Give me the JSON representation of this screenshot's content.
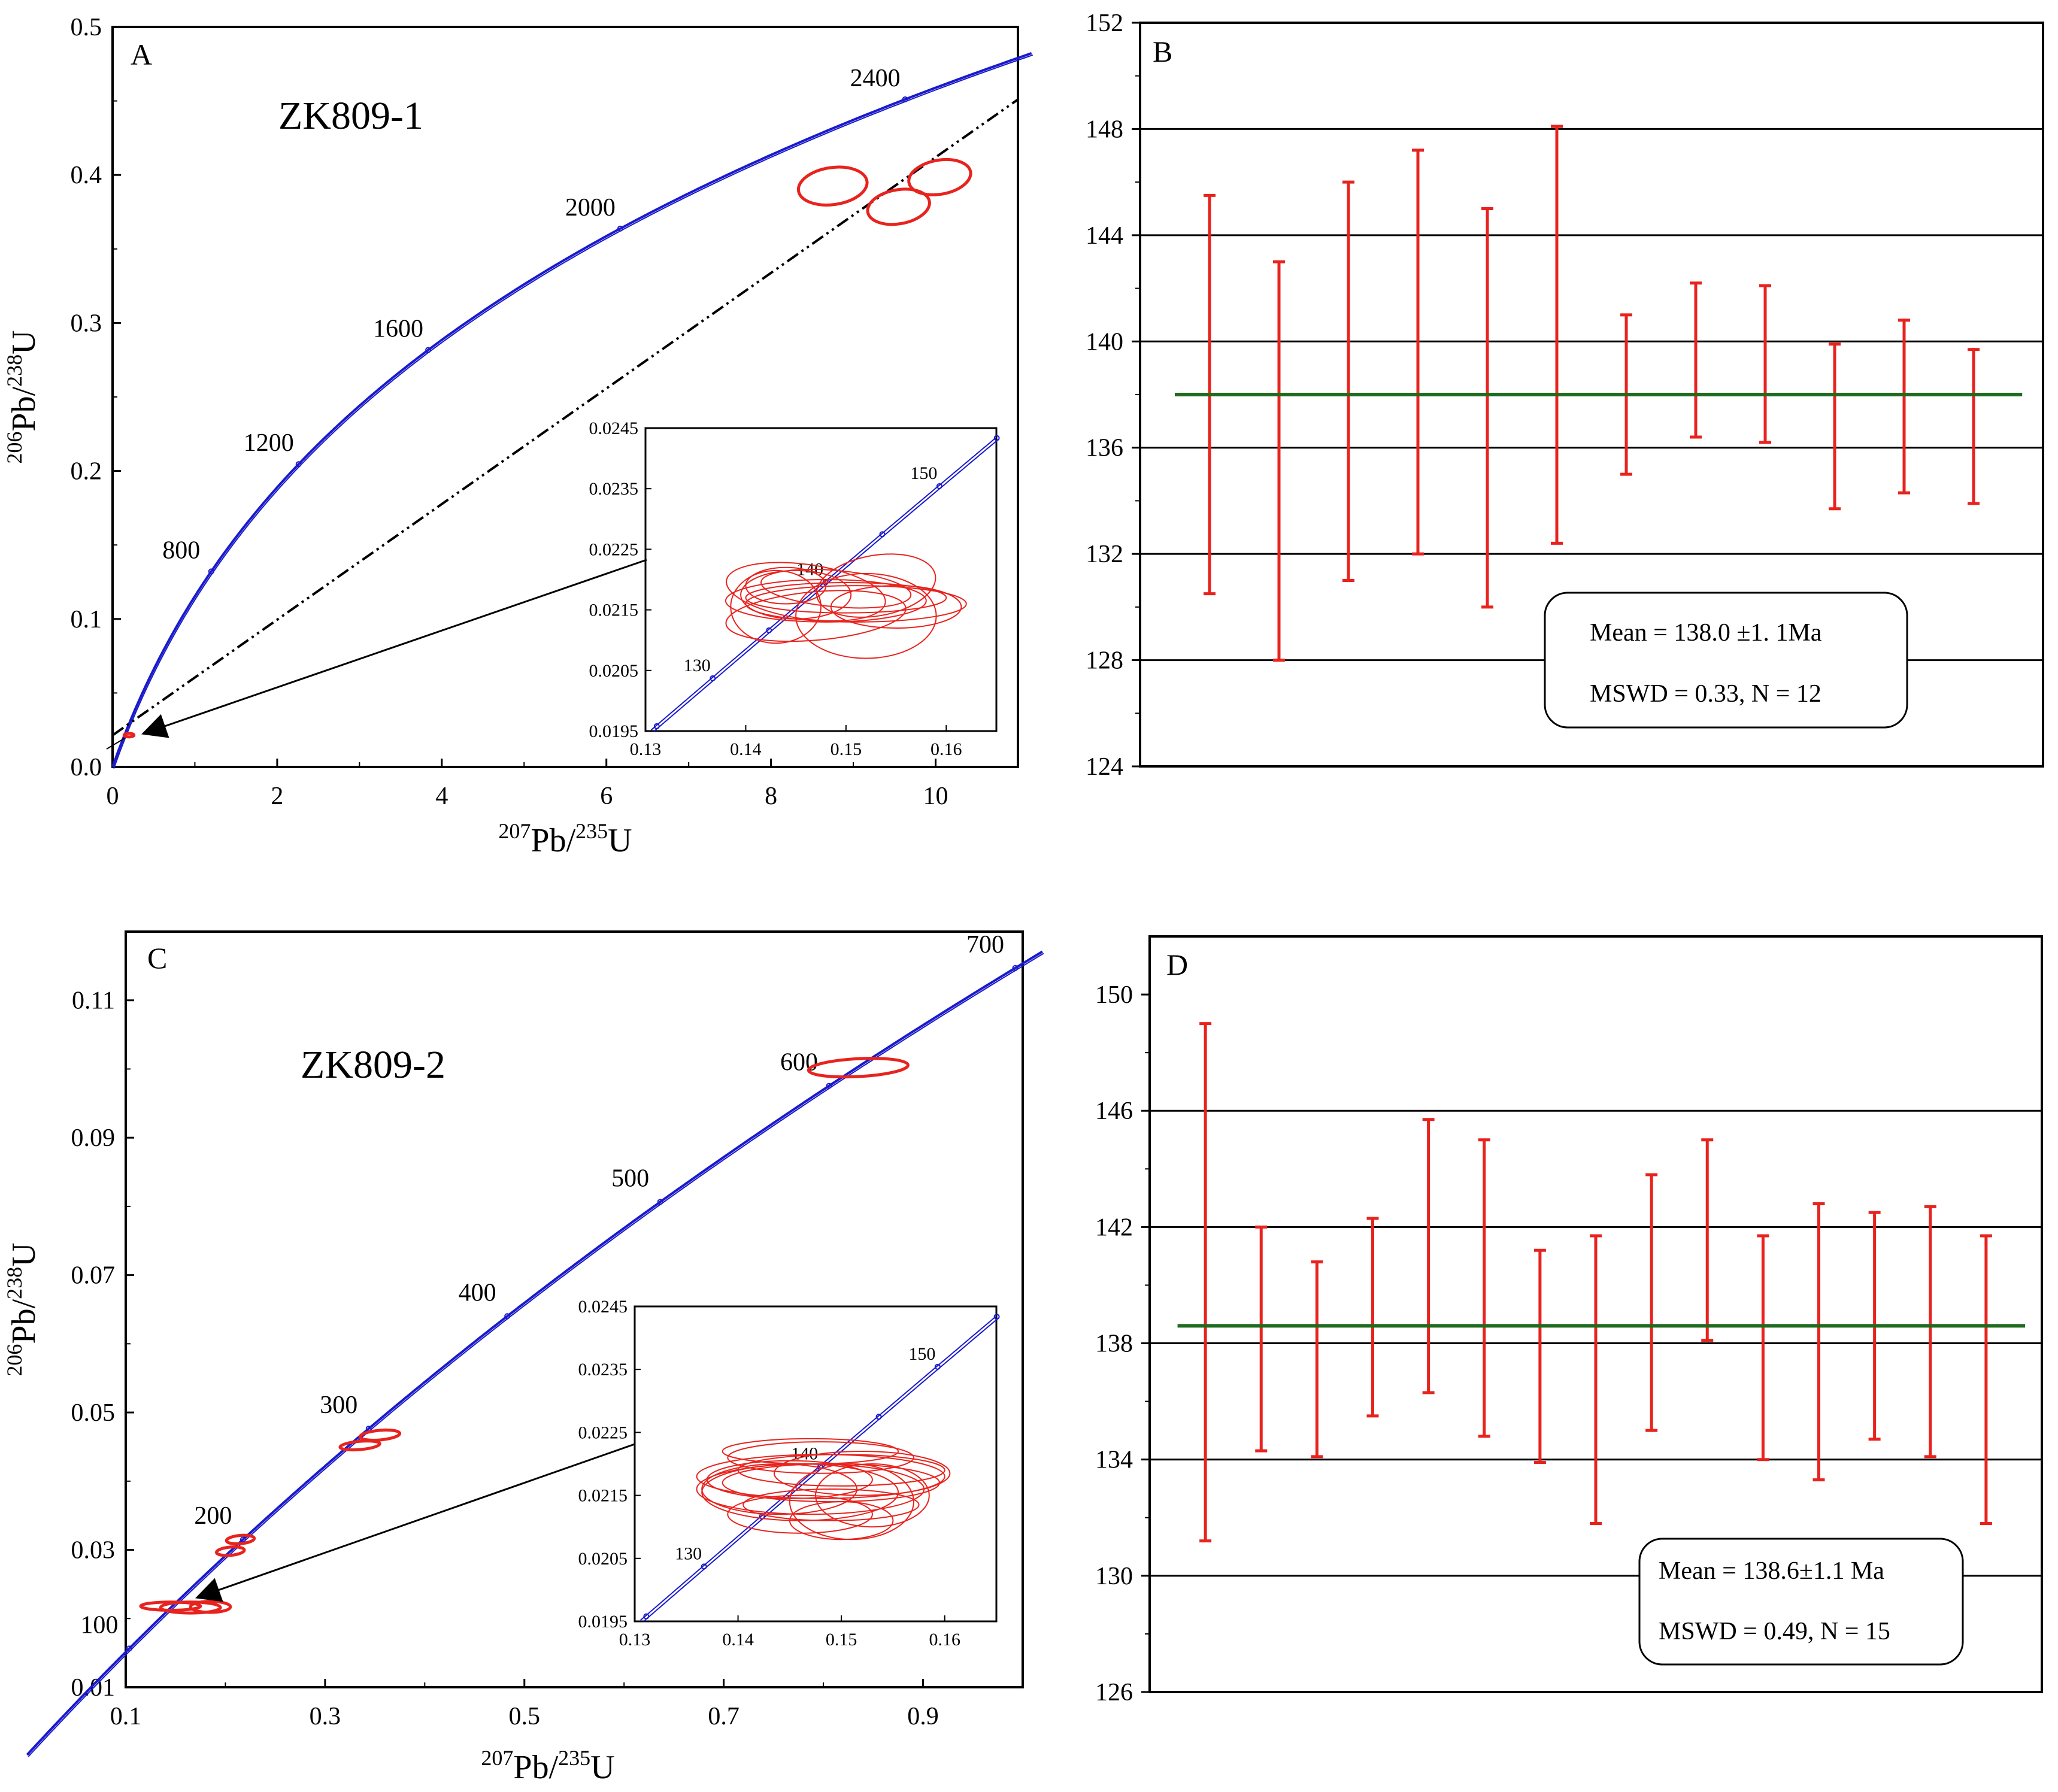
{
  "panels": {
    "A": {
      "letter": "A",
      "sample": "ZK809-1",
      "xlabel": {
        "pre": "207",
        "mid": "Pb/",
        "sup": "235",
        "post": "U"
      },
      "ylabel": {
        "pre": "206",
        "mid": "Pb/",
        "sup": "238",
        "post": "U"
      }
    },
    "B": {
      "letter": "B",
      "mean_text": "Mean = 138.0 ±1. 1Ma",
      "mswd_text": "MSWD = 0.33, N = 12"
    },
    "C": {
      "letter": "C",
      "sample": "ZK809-2",
      "xlabel": {
        "pre": "207",
        "mid": "Pb/",
        "sup": "235",
        "post": "U"
      },
      "ylabel": {
        "pre": "206",
        "mid": "Pb/",
        "sup": "238",
        "post": "U"
      }
    },
    "D": {
      "letter": "D",
      "mean_text": "Mean = 138.6±1.1  Ma",
      "mswd_text": "MSWD = 0.49, N = 15"
    }
  },
  "colors": {
    "concordia": "#1a1acc",
    "ellipse": "#e8231e",
    "errorbar": "#e8231e",
    "mean_line": "#1e6b1e",
    "discordia": "#000000",
    "grid": "#000000"
  },
  "chart_data": [
    {
      "id": "A",
      "type": "scatter",
      "subtype": "concordia",
      "xlim": [
        0,
        11
      ],
      "ylim": [
        0,
        0.5
      ],
      "xticks": [
        0,
        2,
        4,
        6,
        8,
        10
      ],
      "yticks": [
        0.0,
        0.1,
        0.2,
        0.3,
        0.4,
        0.5
      ],
      "age_labels": [
        800,
        1200,
        1600,
        2000,
        2400
      ],
      "discordia_x_max": 11,
      "ellipses": [
        {
          "x": 8.75,
          "y": 0.3925,
          "rx": 0.42,
          "ry": 0.0125,
          "rot": 8
        },
        {
          "x": 9.55,
          "y": 0.3785,
          "rx": 0.38,
          "ry": 0.0115,
          "rot": 10
        },
        {
          "x": 10.05,
          "y": 0.3985,
          "rx": 0.38,
          "ry": 0.0115,
          "rot": 10
        },
        {
          "x": 0.2,
          "y": 0.0215,
          "rx": 0.06,
          "ry": 0.0012,
          "rot": 0
        }
      ],
      "inset": {
        "xlim": [
          0.13,
          0.165
        ],
        "ylim": [
          0.0195,
          0.0245
        ],
        "xticks": [
          0.13,
          0.14,
          0.15,
          0.16
        ],
        "yticks": [
          0.0195,
          0.0205,
          0.0215,
          0.0225,
          0.0235,
          0.0245
        ],
        "age_labels": [
          130,
          140,
          150
        ],
        "ellipses": [
          {
            "x": 0.148,
            "y": 0.02165,
            "rx": 0.01,
            "ry": 0.00035,
            "rot": 0
          },
          {
            "x": 0.151,
            "y": 0.0216,
            "rx": 0.011,
            "ry": 0.0003,
            "rot": 0
          },
          {
            "x": 0.146,
            "y": 0.0218,
            "rx": 0.008,
            "ry": 0.00045,
            "rot": -8
          },
          {
            "x": 0.152,
            "y": 0.0214,
            "rx": 0.007,
            "ry": 0.0007,
            "rot": 0
          },
          {
            "x": 0.143,
            "y": 0.02155,
            "rx": 0.0045,
            "ry": 0.0006,
            "rot": 0
          },
          {
            "x": 0.147,
            "y": 0.0214,
            "rx": 0.009,
            "ry": 0.0004,
            "rot": 5
          },
          {
            "x": 0.15,
            "y": 0.0217,
            "rx": 0.01,
            "ry": 0.00025,
            "rot": 0
          },
          {
            "x": 0.153,
            "y": 0.0219,
            "rx": 0.006,
            "ry": 0.0005,
            "rot": 10
          },
          {
            "x": 0.145,
            "y": 0.02175,
            "rx": 0.0055,
            "ry": 0.0004,
            "rot": 0
          },
          {
            "x": 0.149,
            "y": 0.02185,
            "rx": 0.0075,
            "ry": 0.0003,
            "rot": -5
          },
          {
            "x": 0.155,
            "y": 0.02155,
            "rx": 0.0065,
            "ry": 0.00035,
            "rot": 0
          },
          {
            "x": 0.144,
            "y": 0.0219,
            "rx": 0.004,
            "ry": 0.0003,
            "rot": 0
          }
        ]
      }
    },
    {
      "id": "B",
      "type": "errorbar",
      "ylim": [
        124,
        152
      ],
      "yticks": [
        124,
        128,
        132,
        136,
        140,
        144,
        148,
        152
      ],
      "mean": 138.0,
      "bars": [
        {
          "low": 130.5,
          "high": 145.5
        },
        {
          "low": 128.0,
          "high": 143.0
        },
        {
          "low": 131.0,
          "high": 146.0
        },
        {
          "low": 132.0,
          "high": 147.2
        },
        {
          "low": 130.0,
          "high": 145.0
        },
        {
          "low": 132.4,
          "high": 148.1
        },
        {
          "low": 135.0,
          "high": 141.0
        },
        {
          "low": 136.4,
          "high": 142.2
        },
        {
          "low": 136.2,
          "high": 142.1
        },
        {
          "low": 133.7,
          "high": 139.9
        },
        {
          "low": 134.3,
          "high": 140.8
        },
        {
          "low": 133.9,
          "high": 139.7
        }
      ]
    },
    {
      "id": "C",
      "type": "scatter",
      "subtype": "concordia",
      "xlim": [
        0.1,
        1.0
      ],
      "ylim": [
        0.01,
        0.12
      ],
      "xticks": [
        0.1,
        0.3,
        0.5,
        0.7,
        0.9
      ],
      "yticks": [
        0.01,
        0.03,
        0.05,
        0.07,
        0.09,
        0.11
      ],
      "age_labels": [
        100,
        200,
        300,
        400,
        500,
        600,
        700
      ],
      "ellipses": [
        {
          "x": 0.835,
          "y": 0.1002,
          "rx": 0.05,
          "ry": 0.0013,
          "rot": 3
        },
        {
          "x": 0.355,
          "y": 0.0467,
          "rx": 0.02,
          "ry": 0.0007,
          "rot": 5
        },
        {
          "x": 0.335,
          "y": 0.0452,
          "rx": 0.02,
          "ry": 0.0006,
          "rot": 5
        },
        {
          "x": 0.215,
          "y": 0.0315,
          "rx": 0.014,
          "ry": 0.0006,
          "rot": 5
        },
        {
          "x": 0.205,
          "y": 0.0298,
          "rx": 0.014,
          "ry": 0.0006,
          "rot": 5
        },
        {
          "x": 0.145,
          "y": 0.0218,
          "rx": 0.03,
          "ry": 0.0006,
          "rot": 0
        },
        {
          "x": 0.165,
          "y": 0.0216,
          "rx": 0.03,
          "ry": 0.0008,
          "rot": 0
        },
        {
          "x": 0.185,
          "y": 0.0217,
          "rx": 0.02,
          "ry": 0.0008,
          "rot": 0
        }
      ],
      "inset": {
        "xlim": [
          0.13,
          0.165
        ],
        "ylim": [
          0.0195,
          0.0245
        ],
        "xticks": [
          0.13,
          0.14,
          0.15,
          0.16
        ],
        "yticks": [
          0.0195,
          0.0205,
          0.0215,
          0.0225,
          0.0235,
          0.0245
        ],
        "age_labels": [
          130,
          140,
          150
        ],
        "ellipses": [
          {
            "x": 0.148,
            "y": 0.0218,
            "rx": 0.012,
            "ry": 0.00035,
            "rot": 0
          },
          {
            "x": 0.147,
            "y": 0.0216,
            "rx": 0.011,
            "ry": 0.0004,
            "rot": 0
          },
          {
            "x": 0.149,
            "y": 0.0217,
            "rx": 0.0105,
            "ry": 0.0003,
            "rot": 0
          },
          {
            "x": 0.146,
            "y": 0.02155,
            "rx": 0.0095,
            "ry": 0.00045,
            "rot": 0
          },
          {
            "x": 0.15,
            "y": 0.0219,
            "rx": 0.01,
            "ry": 0.00025,
            "rot": 0
          },
          {
            "x": 0.151,
            "y": 0.0214,
            "rx": 0.006,
            "ry": 0.0006,
            "rot": 0
          },
          {
            "x": 0.145,
            "y": 0.02175,
            "rx": 0.008,
            "ry": 0.0003,
            "rot": 0
          },
          {
            "x": 0.152,
            "y": 0.02185,
            "rx": 0.0085,
            "ry": 0.00035,
            "rot": 0
          },
          {
            "x": 0.144,
            "y": 0.0216,
            "rx": 0.0075,
            "ry": 0.0004,
            "rot": 0
          },
          {
            "x": 0.153,
            "y": 0.0215,
            "rx": 0.0055,
            "ry": 0.0005,
            "rot": 0
          },
          {
            "x": 0.148,
            "y": 0.0221,
            "rx": 0.009,
            "ry": 0.00025,
            "rot": 0
          },
          {
            "x": 0.146,
            "y": 0.0212,
            "rx": 0.007,
            "ry": 0.0003,
            "rot": 0
          },
          {
            "x": 0.15,
            "y": 0.0211,
            "rx": 0.005,
            "ry": 0.0003,
            "rot": 0
          },
          {
            "x": 0.147,
            "y": 0.0222,
            "rx": 0.0085,
            "ry": 0.0002,
            "rot": 0
          },
          {
            "x": 0.149,
            "y": 0.02135,
            "rx": 0.0085,
            "ry": 0.00025,
            "rot": 0
          }
        ]
      }
    },
    {
      "id": "D",
      "type": "errorbar",
      "ylim": [
        126,
        152
      ],
      "yticks": [
        126,
        130,
        134,
        138,
        142,
        146,
        150
      ],
      "mean": 138.6,
      "bars": [
        {
          "low": 131.2,
          "high": 149.0
        },
        {
          "low": 134.3,
          "high": 142.0
        },
        {
          "low": 134.1,
          "high": 140.8
        },
        {
          "low": 135.5,
          "high": 142.3
        },
        {
          "low": 136.3,
          "high": 145.7
        },
        {
          "low": 134.8,
          "high": 145.0
        },
        {
          "low": 133.9,
          "high": 141.2
        },
        {
          "low": 131.8,
          "high": 141.7
        },
        {
          "low": 135.0,
          "high": 143.8
        },
        {
          "low": 138.1,
          "high": 145.0
        },
        {
          "low": 134.0,
          "high": 141.7
        },
        {
          "low": 133.3,
          "high": 142.8
        },
        {
          "low": 134.7,
          "high": 142.5
        },
        {
          "low": 134.1,
          "high": 142.7
        },
        {
          "low": 131.8,
          "high": 141.7
        }
      ]
    }
  ]
}
